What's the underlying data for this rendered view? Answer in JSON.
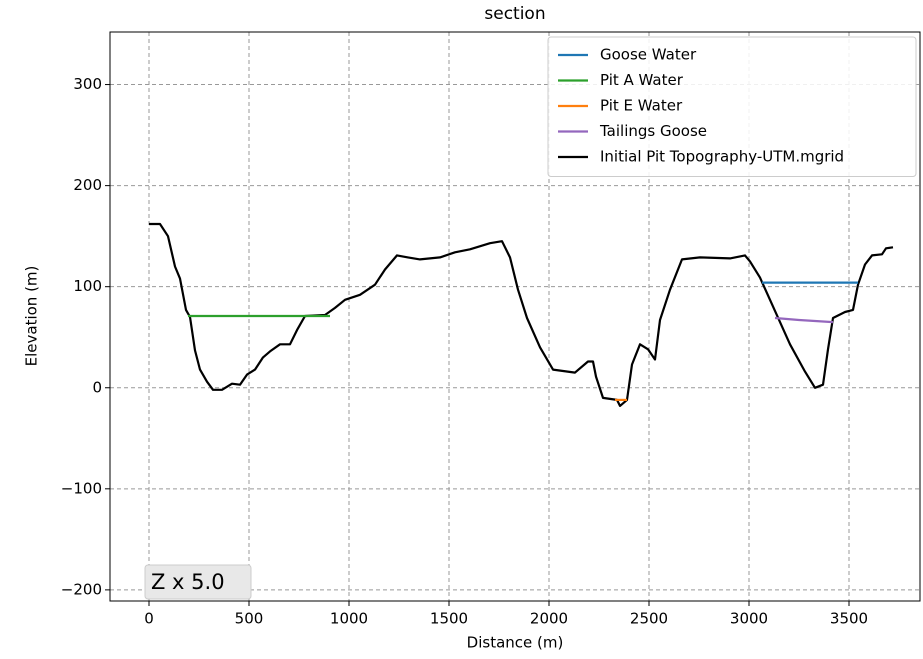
{
  "chart_data": {
    "type": "line",
    "title": "section",
    "xlabel": "Distance (m)",
    "ylabel": "Elevation (m)",
    "annotation": "Z x 5.0",
    "xlim": [
      -195,
      3855
    ],
    "ylim": [
      -211,
      352
    ],
    "xticks": [
      0,
      500,
      1000,
      1500,
      2000,
      2500,
      3000,
      3500
    ],
    "yticks": [
      {
        "value": -200,
        "label": "−200"
      },
      {
        "value": -100,
        "label": "−100"
      },
      0,
      100,
      200,
      300
    ],
    "grid": true,
    "legend": "upper right",
    "series": [
      {
        "name": "Goose Water",
        "color": "#1f77b4",
        "x": [
          3065,
          3545
        ],
        "values": [
          104,
          104
        ]
      },
      {
        "name": "Pit A Water",
        "color": "#2ca02c",
        "x": [
          195,
          905
        ],
        "values": [
          71,
          71
        ]
      },
      {
        "name": "Pit E Water",
        "color": "#ff7f0e",
        "x": [
          2330,
          2390
        ],
        "values": [
          -12,
          -12
        ]
      },
      {
        "name": "Tailings Goose",
        "color": "#9467bd",
        "x": [
          3130,
          3250,
          3420
        ],
        "values": [
          69,
          67,
          65
        ]
      },
      {
        "name": "Initial Pit Topography-UTM.mgrid",
        "color": "#000000",
        "x": [
          0,
          55,
          95,
          130,
          155,
          185,
          205,
          230,
          255,
          290,
          320,
          365,
          415,
          455,
          490,
          530,
          570,
          605,
          655,
          705,
          740,
          780,
          880,
          930,
          980,
          1055,
          1130,
          1180,
          1240,
          1295,
          1355,
          1455,
          1530,
          1605,
          1705,
          1765,
          1805,
          1845,
          1890,
          1955,
          2020,
          2130,
          2195,
          2220,
          2235,
          2270,
          2340,
          2355,
          2390,
          2415,
          2455,
          2495,
          2530,
          2555,
          2605,
          2665,
          2755,
          2905,
          2980,
          3005,
          3055,
          3105,
          3205,
          3280,
          3330,
          3370,
          3395,
          3420,
          3480,
          3520,
          3545,
          3580,
          3615,
          3665,
          3685,
          3720
        ],
        "values": [
          162,
          162,
          150,
          120,
          108,
          77,
          70,
          37,
          18,
          6,
          -2,
          -2,
          4,
          3,
          13,
          18,
          30,
          36,
          43,
          43,
          57,
          71,
          72,
          79,
          87,
          92,
          102,
          117,
          131,
          129,
          127,
          129,
          134,
          137,
          143,
          145,
          129,
          97,
          69,
          40,
          18,
          15,
          26,
          26,
          11,
          -10,
          -12,
          -18,
          -12,
          23,
          43,
          38,
          28,
          67,
          97,
          127,
          129,
          128,
          131,
          125,
          109,
          87,
          43,
          16,
          0,
          3,
          38,
          69,
          75,
          77,
          102,
          122,
          131,
          132,
          138,
          139
        ]
      }
    ]
  }
}
